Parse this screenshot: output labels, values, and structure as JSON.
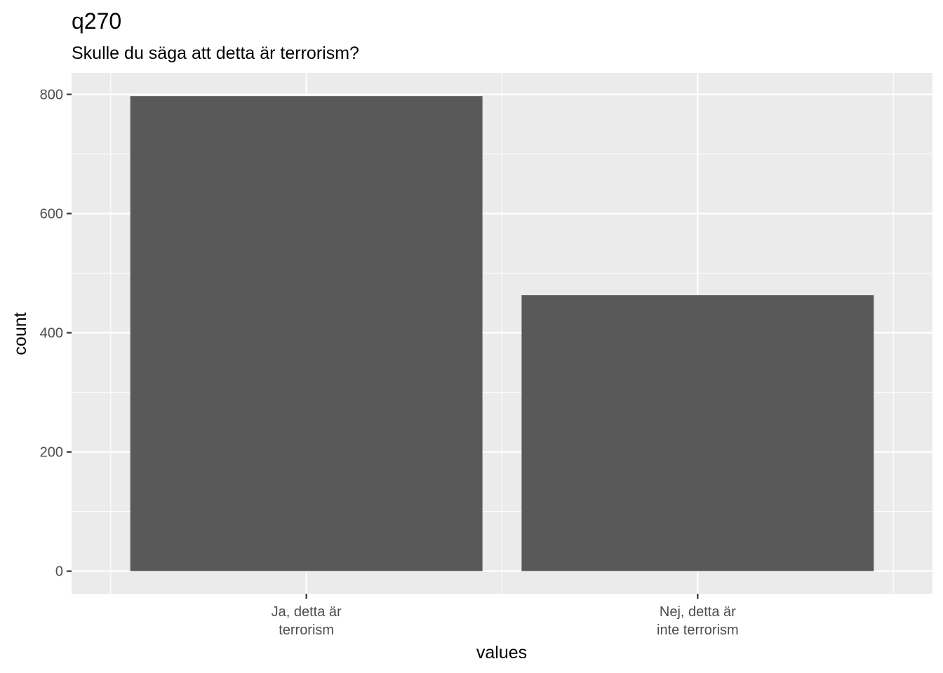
{
  "chart_data": {
    "type": "bar",
    "title": "q270",
    "subtitle": "Skulle du säga att detta är terrorism?",
    "xlabel": "values",
    "ylabel": "count",
    "categories": [
      [
        "Ja, detta är",
        "terrorism"
      ],
      [
        "Nej, detta är",
        "inte terrorism"
      ]
    ],
    "values": [
      797,
      463
    ],
    "ylim": [
      -38,
      836
    ],
    "yticks": [
      0,
      200,
      400,
      600,
      800
    ],
    "ytick_labels": [
      "0",
      "200",
      "400",
      "600",
      "800"
    ],
    "grid": true,
    "colors": {
      "bar": "#595959",
      "panel": "#ebebeb",
      "grid_major": "#ffffff",
      "tick": "#333333"
    }
  }
}
